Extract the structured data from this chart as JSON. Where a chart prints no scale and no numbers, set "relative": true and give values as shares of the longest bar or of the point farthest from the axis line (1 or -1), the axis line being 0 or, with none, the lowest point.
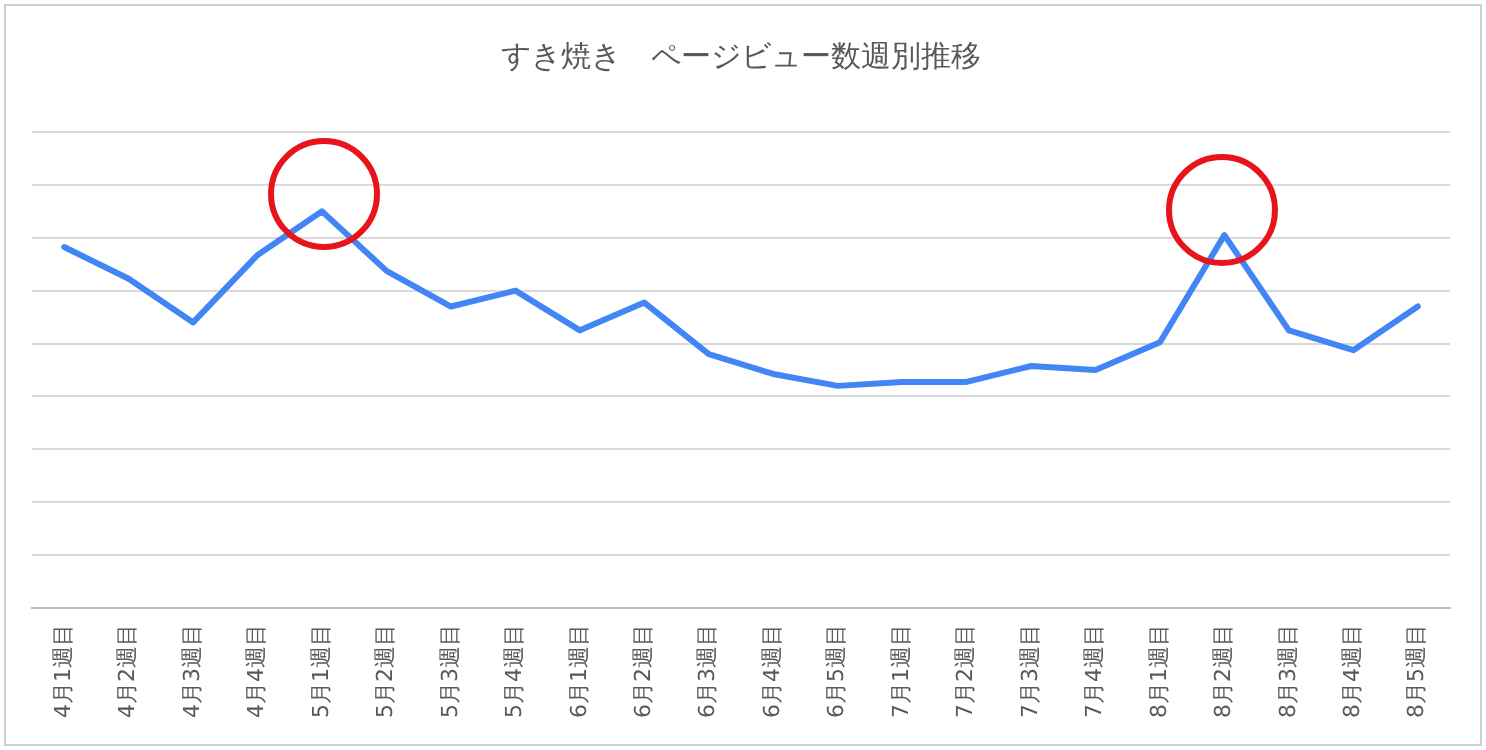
{
  "chart_data": {
    "type": "line",
    "title": "すき焼き　ページビュー数週別推移",
    "relative": true,
    "grid": "y",
    "legend": false,
    "marker": "none",
    "line_style": "solid",
    "categories": [
      "4月1週目",
      "4月2週目",
      "4月3週目",
      "4月4週目",
      "5月1週目",
      "5月2週目",
      "5月3週目",
      "5月4週目",
      "6月1週目",
      "6月2週目",
      "6月3週目",
      "6月4週目",
      "6月5週目",
      "7月1週目",
      "7月2週目",
      "7月3週目",
      "7月4週目",
      "8月1週目",
      "8月2週目",
      "8月3週目",
      "8月4週目",
      "8月5週目"
    ],
    "series": [
      {
        "color": "#4285f4",
        "values": [
          0.91,
          0.83,
          0.72,
          0.89,
          1,
          0.85,
          0.76,
          0.8,
          0.7,
          0.77,
          0.64,
          0.59,
          0.56,
          0.57,
          0.57,
          0.61,
          0.6,
          0.67,
          0.94,
          0.7,
          0.65,
          0.76
        ]
      }
    ]
  }
}
